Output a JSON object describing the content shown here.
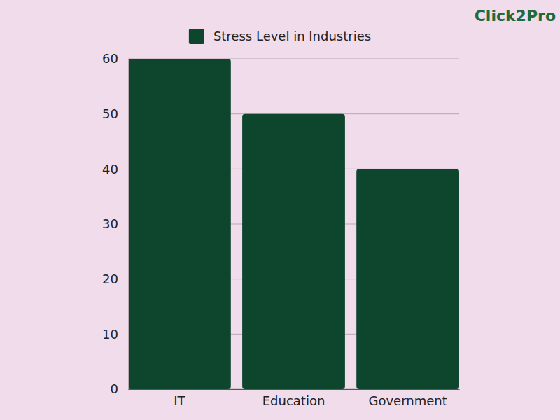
{
  "chart_data": {
    "type": "bar",
    "categories": [
      "IT",
      "Education",
      "Government"
    ],
    "series": [
      {
        "name": "Stress Level in Industries",
        "color": "#0d452d",
        "values": [
          60,
          50,
          40
        ]
      }
    ],
    "ylim": [
      0,
      60
    ],
    "yticks": [
      0,
      10,
      20,
      30,
      40,
      50,
      60
    ],
    "grid": true,
    "legend": "top",
    "annotations": [
      "Click2Pro"
    ]
  }
}
